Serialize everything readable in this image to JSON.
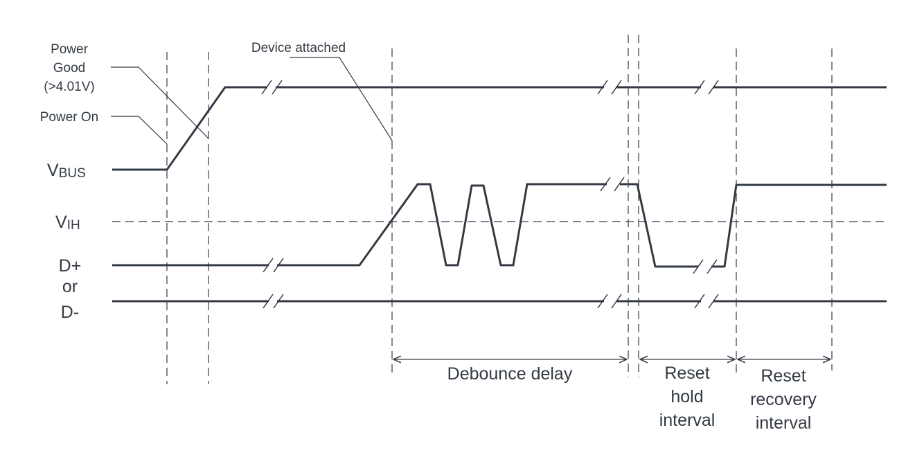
{
  "labels": {
    "power_good": [
      "Power",
      "Good",
      "(>4.01V)"
    ],
    "power_on": "Power On",
    "device_attached": "Device attached",
    "vbus_main": "V",
    "vbus_sub": "BUS",
    "vih_main": "V",
    "vih_sub": "IH",
    "dline": [
      "D+",
      "or",
      "D-"
    ],
    "debounce": "Debounce delay",
    "reset_hold": [
      "Reset",
      "hold",
      "interval"
    ],
    "reset_recovery": [
      "Reset",
      "recovery",
      "interval"
    ]
  },
  "colors": {
    "line": "#333a44"
  }
}
